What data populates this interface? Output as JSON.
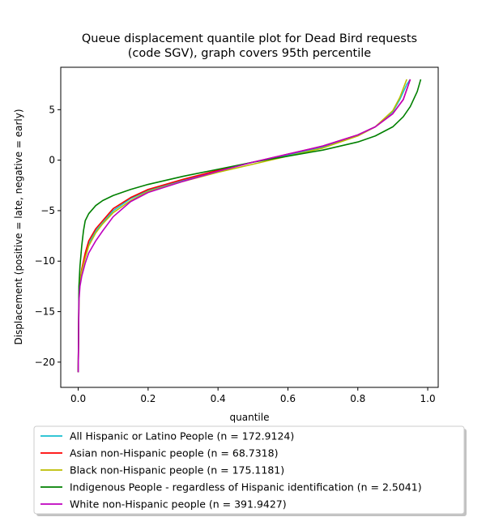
{
  "chart_data": {
    "type": "line",
    "title_lines": [
      "Queue displacement quantile plot for Dead Bird  requests",
      "(code SGV), graph covers 95th percentile"
    ],
    "xlabel": "quantile",
    "ylabel": "Displacement (positive = late, negative = early)",
    "xlim": [
      -0.05,
      1.03
    ],
    "ylim": [
      -22.5,
      9.2
    ],
    "xticks": [
      0.0,
      0.2,
      0.4,
      0.6,
      0.8,
      1.0
    ],
    "xtick_labels": [
      "0.0",
      "0.2",
      "0.4",
      "0.6",
      "0.8",
      "1.0"
    ],
    "yticks": [
      5,
      0,
      -5,
      -10,
      -15,
      -20
    ],
    "ytick_labels": [
      "5",
      "0",
      "−5",
      "−10",
      "−15",
      "−20"
    ],
    "grid": false,
    "legend_position": "below plot",
    "series": [
      {
        "name": "All Hispanic or Latino People (n = 172.9124)",
        "color": "#17becf",
        "points": [
          [
            0.0,
            -21.0
          ],
          [
            0.002,
            -13.5
          ],
          [
            0.005,
            -12.0
          ],
          [
            0.01,
            -11.0
          ],
          [
            0.02,
            -9.5
          ],
          [
            0.03,
            -8.3
          ],
          [
            0.05,
            -7.0
          ],
          [
            0.07,
            -6.2
          ],
          [
            0.1,
            -5.0
          ],
          [
            0.15,
            -3.8
          ],
          [
            0.2,
            -3.0
          ],
          [
            0.3,
            -2.0
          ],
          [
            0.4,
            -1.0
          ],
          [
            0.5,
            -0.2
          ],
          [
            0.6,
            0.5
          ],
          [
            0.7,
            1.3
          ],
          [
            0.8,
            2.5
          ],
          [
            0.85,
            3.3
          ],
          [
            0.9,
            4.8
          ],
          [
            0.92,
            6.0
          ],
          [
            0.94,
            7.5
          ],
          [
            0.95,
            8.0
          ]
        ]
      },
      {
        "name": "Asian non-Hispanic people (n = 68.7318)",
        "color": "#ff0000",
        "points": [
          [
            0.0,
            -21.0
          ],
          [
            0.002,
            -13.5
          ],
          [
            0.005,
            -12.0
          ],
          [
            0.01,
            -10.8
          ],
          [
            0.02,
            -9.2
          ],
          [
            0.03,
            -8.0
          ],
          [
            0.05,
            -6.8
          ],
          [
            0.07,
            -6.0
          ],
          [
            0.1,
            -4.8
          ],
          [
            0.15,
            -3.7
          ],
          [
            0.2,
            -2.9
          ],
          [
            0.3,
            -1.9
          ],
          [
            0.4,
            -1.0
          ],
          [
            0.5,
            -0.2
          ],
          [
            0.6,
            0.6
          ],
          [
            0.7,
            1.4
          ],
          [
            0.8,
            2.5
          ],
          [
            0.85,
            3.3
          ],
          [
            0.9,
            4.6
          ],
          [
            0.93,
            6.0
          ],
          [
            0.95,
            8.0
          ]
        ]
      },
      {
        "name": "Black non-Hispanic people (n = 175.1181)",
        "color": "#bcbd00",
        "points": [
          [
            0.0,
            -21.0
          ],
          [
            0.002,
            -13.5
          ],
          [
            0.005,
            -12.0
          ],
          [
            0.01,
            -11.0
          ],
          [
            0.02,
            -9.7
          ],
          [
            0.03,
            -8.5
          ],
          [
            0.05,
            -7.2
          ],
          [
            0.07,
            -6.3
          ],
          [
            0.1,
            -5.2
          ],
          [
            0.15,
            -4.0
          ],
          [
            0.2,
            -3.1
          ],
          [
            0.3,
            -2.1
          ],
          [
            0.4,
            -1.2
          ],
          [
            0.5,
            -0.4
          ],
          [
            0.6,
            0.4
          ],
          [
            0.7,
            1.2
          ],
          [
            0.8,
            2.4
          ],
          [
            0.85,
            3.3
          ],
          [
            0.9,
            4.9
          ],
          [
            0.92,
            6.2
          ],
          [
            0.94,
            8.0
          ]
        ]
      },
      {
        "name": "Indigenous People - regardless of Hispanic identification (n = 2.5041)",
        "color": "#008000",
        "points": [
          [
            0.0,
            -21.0
          ],
          [
            0.002,
            -12.5
          ],
          [
            0.005,
            -10.5
          ],
          [
            0.01,
            -8.5
          ],
          [
            0.015,
            -7.0
          ],
          [
            0.02,
            -6.0
          ],
          [
            0.03,
            -5.3
          ],
          [
            0.05,
            -4.5
          ],
          [
            0.07,
            -4.0
          ],
          [
            0.1,
            -3.5
          ],
          [
            0.15,
            -2.9
          ],
          [
            0.2,
            -2.4
          ],
          [
            0.3,
            -1.6
          ],
          [
            0.4,
            -0.9
          ],
          [
            0.5,
            -0.2
          ],
          [
            0.6,
            0.4
          ],
          [
            0.7,
            1.0
          ],
          [
            0.8,
            1.8
          ],
          [
            0.85,
            2.4
          ],
          [
            0.9,
            3.3
          ],
          [
            0.93,
            4.3
          ],
          [
            0.95,
            5.3
          ],
          [
            0.97,
            6.8
          ],
          [
            0.98,
            8.0
          ]
        ]
      },
      {
        "name": "White non-Hispanic people (n = 391.9427)",
        "color": "#bf00bf",
        "points": [
          [
            0.0,
            -21.0
          ],
          [
            0.002,
            -14.0
          ],
          [
            0.005,
            -12.5
          ],
          [
            0.01,
            -11.5
          ],
          [
            0.02,
            -10.2
          ],
          [
            0.03,
            -9.2
          ],
          [
            0.05,
            -8.0
          ],
          [
            0.07,
            -7.0
          ],
          [
            0.1,
            -5.6
          ],
          [
            0.15,
            -4.1
          ],
          [
            0.2,
            -3.2
          ],
          [
            0.3,
            -2.1
          ],
          [
            0.4,
            -1.1
          ],
          [
            0.5,
            -0.2
          ],
          [
            0.6,
            0.6
          ],
          [
            0.7,
            1.4
          ],
          [
            0.8,
            2.5
          ],
          [
            0.85,
            3.3
          ],
          [
            0.9,
            4.6
          ],
          [
            0.93,
            6.0
          ],
          [
            0.95,
            8.0
          ]
        ]
      }
    ]
  }
}
